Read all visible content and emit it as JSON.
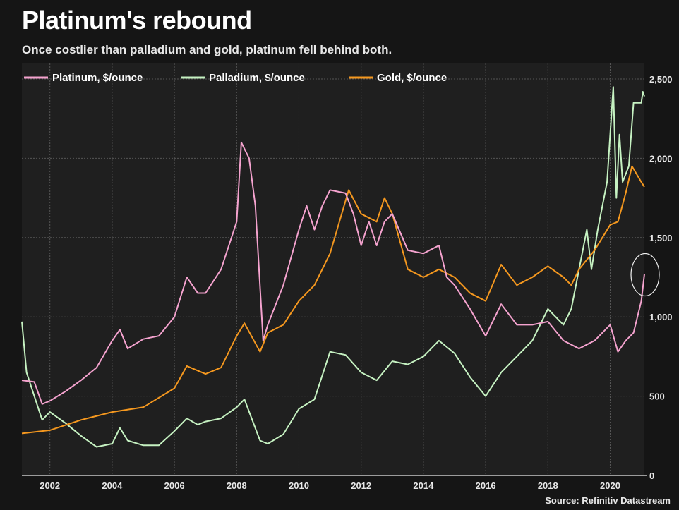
{
  "title": "Platinum's rebound",
  "subtitle": "Once costlier than palladium and gold, platinum fell behind both.",
  "source": "Source: Refinitiv Datastream",
  "chart_data": {
    "type": "line",
    "xlim": [
      2001.1,
      2021.1
    ],
    "ylim": [
      0,
      2500
    ],
    "x_ticks": [
      "2002",
      "2004",
      "2006",
      "2008",
      "2010",
      "2012",
      "2014",
      "2016",
      "2018",
      "2020"
    ],
    "y_ticks": [
      "0",
      "500",
      "1,000",
      "1,500",
      "2,000",
      "2,500"
    ],
    "grid": true,
    "legend": "top-left",
    "annotation": "circle around the latest platinum value",
    "series": [
      {
        "name": "Platinum, $/ounce",
        "color": "#f5a3cf",
        "points": [
          [
            2001.1,
            600
          ],
          [
            2001.5,
            590
          ],
          [
            2001.75,
            450
          ],
          [
            2002,
            470
          ],
          [
            2002.5,
            530
          ],
          [
            2003,
            600
          ],
          [
            2003.5,
            680
          ],
          [
            2004,
            850
          ],
          [
            2004.25,
            920
          ],
          [
            2004.5,
            800
          ],
          [
            2005,
            860
          ],
          [
            2005.5,
            880
          ],
          [
            2006,
            1000
          ],
          [
            2006.4,
            1250
          ],
          [
            2006.75,
            1150
          ],
          [
            2007,
            1150
          ],
          [
            2007.5,
            1300
          ],
          [
            2008,
            1600
          ],
          [
            2008.15,
            2100
          ],
          [
            2008.4,
            2000
          ],
          [
            2008.6,
            1700
          ],
          [
            2008.85,
            850
          ],
          [
            2009,
            950
          ],
          [
            2009.5,
            1200
          ],
          [
            2010,
            1550
          ],
          [
            2010.25,
            1700
          ],
          [
            2010.5,
            1550
          ],
          [
            2010.75,
            1700
          ],
          [
            2011,
            1800
          ],
          [
            2011.5,
            1780
          ],
          [
            2011.75,
            1650
          ],
          [
            2012,
            1450
          ],
          [
            2012.25,
            1600
          ],
          [
            2012.5,
            1450
          ],
          [
            2012.75,
            1600
          ],
          [
            2013,
            1650
          ],
          [
            2013.5,
            1420
          ],
          [
            2014,
            1400
          ],
          [
            2014.5,
            1450
          ],
          [
            2014.75,
            1250
          ],
          [
            2015,
            1200
          ],
          [
            2015.5,
            1050
          ],
          [
            2016,
            880
          ],
          [
            2016.5,
            1080
          ],
          [
            2017,
            950
          ],
          [
            2017.5,
            950
          ],
          [
            2018,
            970
          ],
          [
            2018.5,
            850
          ],
          [
            2019,
            800
          ],
          [
            2019.5,
            850
          ],
          [
            2020,
            950
          ],
          [
            2020.25,
            780
          ],
          [
            2020.5,
            850
          ],
          [
            2020.75,
            900
          ],
          [
            2021,
            1100
          ],
          [
            2021.1,
            1270
          ]
        ]
      },
      {
        "name": "Palladium, $/ounce",
        "color": "#c6f2c2",
        "points": [
          [
            2001.1,
            970
          ],
          [
            2001.25,
            650
          ],
          [
            2001.5,
            500
          ],
          [
            2001.75,
            350
          ],
          [
            2002,
            400
          ],
          [
            2002.5,
            330
          ],
          [
            2003,
            250
          ],
          [
            2003.5,
            180
          ],
          [
            2004,
            200
          ],
          [
            2004.25,
            300
          ],
          [
            2004.5,
            220
          ],
          [
            2005,
            190
          ],
          [
            2005.5,
            190
          ],
          [
            2006,
            280
          ],
          [
            2006.4,
            360
          ],
          [
            2006.75,
            320
          ],
          [
            2007,
            340
          ],
          [
            2007.5,
            360
          ],
          [
            2008,
            430
          ],
          [
            2008.25,
            480
          ],
          [
            2008.75,
            220
          ],
          [
            2009,
            200
          ],
          [
            2009.5,
            260
          ],
          [
            2010,
            420
          ],
          [
            2010.5,
            480
          ],
          [
            2011,
            780
          ],
          [
            2011.5,
            760
          ],
          [
            2012,
            650
          ],
          [
            2012.5,
            600
          ],
          [
            2013,
            720
          ],
          [
            2013.5,
            700
          ],
          [
            2014,
            750
          ],
          [
            2014.5,
            850
          ],
          [
            2015,
            770
          ],
          [
            2015.5,
            620
          ],
          [
            2016,
            500
          ],
          [
            2016.5,
            650
          ],
          [
            2017,
            750
          ],
          [
            2017.5,
            850
          ],
          [
            2018,
            1050
          ],
          [
            2018.5,
            950
          ],
          [
            2018.75,
            1050
          ],
          [
            2019,
            1300
          ],
          [
            2019.25,
            1550
          ],
          [
            2019.4,
            1300
          ],
          [
            2019.6,
            1550
          ],
          [
            2019.9,
            1850
          ],
          [
            2020.1,
            2450
          ],
          [
            2020.2,
            1750
          ],
          [
            2020.3,
            2150
          ],
          [
            2020.4,
            1850
          ],
          [
            2020.6,
            1950
          ],
          [
            2020.75,
            2350
          ],
          [
            2021,
            2350
          ],
          [
            2021.05,
            2420
          ],
          [
            2021.1,
            2390
          ]
        ]
      },
      {
        "name": "Gold, $/ounce",
        "color": "#f5981f",
        "points": [
          [
            2001.1,
            265
          ],
          [
            2002,
            285
          ],
          [
            2003,
            350
          ],
          [
            2004,
            400
          ],
          [
            2005,
            430
          ],
          [
            2006,
            550
          ],
          [
            2006.4,
            690
          ],
          [
            2007,
            640
          ],
          [
            2007.5,
            680
          ],
          [
            2008,
            880
          ],
          [
            2008.25,
            960
          ],
          [
            2008.75,
            780
          ],
          [
            2009,
            900
          ],
          [
            2009.5,
            950
          ],
          [
            2010,
            1100
          ],
          [
            2010.5,
            1200
          ],
          [
            2011,
            1400
          ],
          [
            2011.6,
            1800
          ],
          [
            2012,
            1650
          ],
          [
            2012.5,
            1600
          ],
          [
            2012.75,
            1750
          ],
          [
            2013,
            1650
          ],
          [
            2013.5,
            1300
          ],
          [
            2014,
            1250
          ],
          [
            2014.5,
            1300
          ],
          [
            2015,
            1250
          ],
          [
            2015.5,
            1150
          ],
          [
            2016,
            1100
          ],
          [
            2016.5,
            1330
          ],
          [
            2017,
            1200
          ],
          [
            2017.5,
            1250
          ],
          [
            2018,
            1320
          ],
          [
            2018.5,
            1250
          ],
          [
            2018.75,
            1200
          ],
          [
            2019,
            1300
          ],
          [
            2019.5,
            1420
          ],
          [
            2020,
            1580
          ],
          [
            2020.25,
            1600
          ],
          [
            2020.5,
            1780
          ],
          [
            2020.7,
            1950
          ],
          [
            2020.85,
            1900
          ],
          [
            2021,
            1850
          ],
          [
            2021.1,
            1820
          ]
        ]
      }
    ]
  }
}
